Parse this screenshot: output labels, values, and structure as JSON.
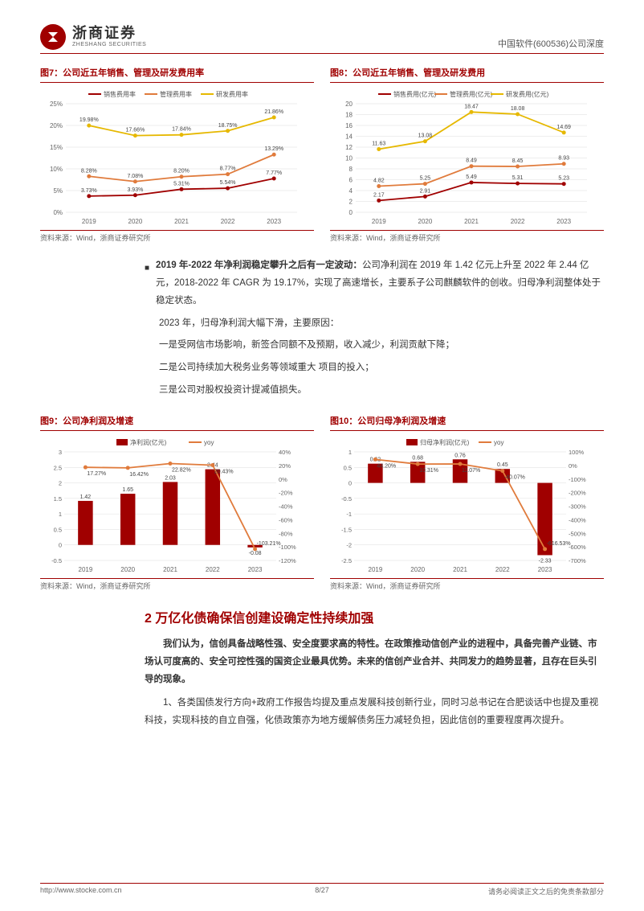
{
  "header": {
    "logo_cn": "浙商证券",
    "logo_en": "ZHESHANG SECURITIES",
    "doc_title": "中国软件(600536)公司深度"
  },
  "chart7": {
    "title_prefix": "图7：",
    "title": "公司近五年销售、管理及研发费用率",
    "type": "line",
    "years": [
      "2019",
      "2020",
      "2021",
      "2022",
      "2023"
    ],
    "series": [
      {
        "name": "销售费用率",
        "color": "#a00000",
        "values": [
          3.73,
          3.93,
          5.31,
          5.54,
          7.77
        ],
        "labels": [
          "3.73%",
          "3.93%",
          "5.31%",
          "5.54%",
          "7.77%"
        ]
      },
      {
        "name": "管理费用率",
        "color": "#e07b3c",
        "values": [
          8.28,
          7.08,
          8.2,
          8.77,
          13.29
        ],
        "labels": [
          "8.28%",
          "7.08%",
          "8.20%",
          "8.77%",
          "13.29%"
        ]
      },
      {
        "name": "研发费用率",
        "color": "#e6b800",
        "values": [
          19.98,
          17.66,
          17.84,
          18.75,
          21.86
        ],
        "labels": [
          "19.98%",
          "17.66%",
          "17.84%",
          "18.75%",
          "21.86%"
        ]
      }
    ],
    "y_ticks": [
      "0%",
      "5%",
      "10%",
      "15%",
      "20%",
      "25%"
    ],
    "y_max": 25,
    "source": "资料来源：Wind，浙商证券研究所"
  },
  "chart8": {
    "title_prefix": "图8：",
    "title": "公司近五年销售、管理及研发费用",
    "type": "line",
    "years": [
      "2019",
      "2020",
      "2021",
      "2022",
      "2023"
    ],
    "series": [
      {
        "name": "销售费用(亿元)",
        "color": "#a00000",
        "values": [
          2.17,
          2.91,
          5.49,
          5.31,
          5.23
        ],
        "labels": [
          "2.17",
          "2.91",
          "5.49",
          "5.31",
          "5.23"
        ]
      },
      {
        "name": "管理费用(亿元)",
        "color": "#e07b3c",
        "values": [
          4.82,
          5.25,
          8.49,
          8.45,
          8.93
        ],
        "labels": [
          "4.82",
          "5.25",
          "8.49",
          "8.45",
          "8.93"
        ]
      },
      {
        "name": "研发费用(亿元)",
        "color": "#e6b800",
        "values": [
          11.63,
          13.08,
          18.47,
          18.08,
          14.69
        ],
        "labels": [
          "11.63",
          "13.08",
          "18.47",
          "18.08",
          "14.69"
        ]
      }
    ],
    "y_ticks": [
      "0",
      "2",
      "4",
      "6",
      "8",
      "10",
      "12",
      "14",
      "16",
      "18",
      "20"
    ],
    "y_max": 20,
    "source": "资料来源：Wind，浙商证券研究所"
  },
  "paragraph1": {
    "bold1": "2019 年-2022 年净利润稳定攀升之后有一定波动：",
    "text1": "公司净利润在 2019 年 1.42 亿元上升至 2022 年 2.44 亿元，2018-2022 年 CAGR 为 19.17%，实现了高速增长，主要系子公司麒麟软件的创收。归母净利润整体处于稳定状态。",
    "text2": "2023 年，归母净利润大幅下滑，主要原因：",
    "text3": "一是受网信市场影响，新签合同额不及预期，收入减少，利润贡献下降；",
    "text4": "二是公司持续加大税务业务等领域重大 项目的投入；",
    "text5": "三是公司对股权投资计提减值损失。"
  },
  "chart9": {
    "title_prefix": "图9：",
    "title": "公司净利润及增速",
    "type": "bar-line",
    "years": [
      "2019",
      "2020",
      "2021",
      "2022",
      "2023"
    ],
    "bar": {
      "name": "净利润(亿元)",
      "color": "#a00000",
      "values": [
        1.42,
        1.65,
        2.03,
        2.44,
        -0.08
      ],
      "labels": [
        "1.42",
        "1.65",
        "2.03",
        "2.44",
        "-0.08"
      ]
    },
    "line": {
      "name": "yoy",
      "color": "#e07b3c",
      "values": [
        17.27,
        16.42,
        22.82,
        20.43,
        -103.21
      ],
      "labels": [
        "17.27%",
        "16.42%",
        "22.82%",
        "20.43%",
        "-103.21%"
      ]
    },
    "y1_ticks": [
      "-0.5",
      "0",
      "0.5",
      "1",
      "1.5",
      "2",
      "2.5",
      "3"
    ],
    "y1_min": -0.5,
    "y1_max": 3,
    "y2_ticks": [
      "-120%",
      "-100%",
      "-80%",
      "-60%",
      "-40%",
      "-20%",
      "0%",
      "20%",
      "40%"
    ],
    "y2_min": -120,
    "y2_max": 40,
    "source": "资料来源：Wind，浙商证券研究所"
  },
  "chart10": {
    "title_prefix": "图10：",
    "title": "公司归母净利润及增速",
    "type": "bar-line",
    "years": [
      "2019",
      "2020",
      "2021",
      "2022",
      "2023"
    ],
    "bar": {
      "name": "归母净利润(亿元)",
      "color": "#a00000",
      "values": [
        0.62,
        0.68,
        0.76,
        0.45,
        -2.33
      ],
      "labels": [
        "0.62",
        "0.68",
        "0.76",
        "0.45",
        "-2.33"
      ]
    },
    "line": {
      "name": "yoy",
      "color": "#e07b3c",
      "values": [
        44.2,
        10.31,
        11.07,
        -40.07,
        -616.53
      ],
      "labels": [
        "44.20%",
        "10.31%",
        "11.07%",
        "-40.07%",
        "-616.53%"
      ]
    },
    "y1_ticks": [
      "-2.5",
      "-2",
      "-1.5",
      "-1",
      "-0.5",
      "0",
      "0.5",
      "1"
    ],
    "y1_min": -2.5,
    "y1_max": 1,
    "y2_ticks": [
      "-700%",
      "-600%",
      "-500%",
      "-400%",
      "-300%",
      "-200%",
      "-100%",
      "0%",
      "100%"
    ],
    "y2_min": -700,
    "y2_max": 100,
    "source": "资料来源：Wind，浙商证券研究所"
  },
  "section2": {
    "title": "2 万亿化债确保信创建设确定性持续加强",
    "p1_bold": "我们认为，信创具备战略性强、安全度要求高的特性。在政策推动信创产业的进程中，具备完善产业链、市场认可度高的、安全可控性强的国资企业最具优势。未来的信创产业合并、共同发力的趋势显著，且存在巨头引导的现象。",
    "p2": "1、各类国债发行方向+政府工作报告均提及重点发展科技创新行业，同时习总书记在合肥谈话中也提及重视科技，实现科技的自立自强，化债政策亦为地方缓解债务压力减轻负担，因此信创的重要程度再次提升。"
  },
  "footer": {
    "url": "http://www.stocke.com.cn",
    "page": "8/27",
    "disclaimer": "请务必阅读正文之后的免责条款部分"
  },
  "colors": {
    "brand": "#a00000",
    "grid": "#dddddd",
    "axis": "#999999"
  }
}
